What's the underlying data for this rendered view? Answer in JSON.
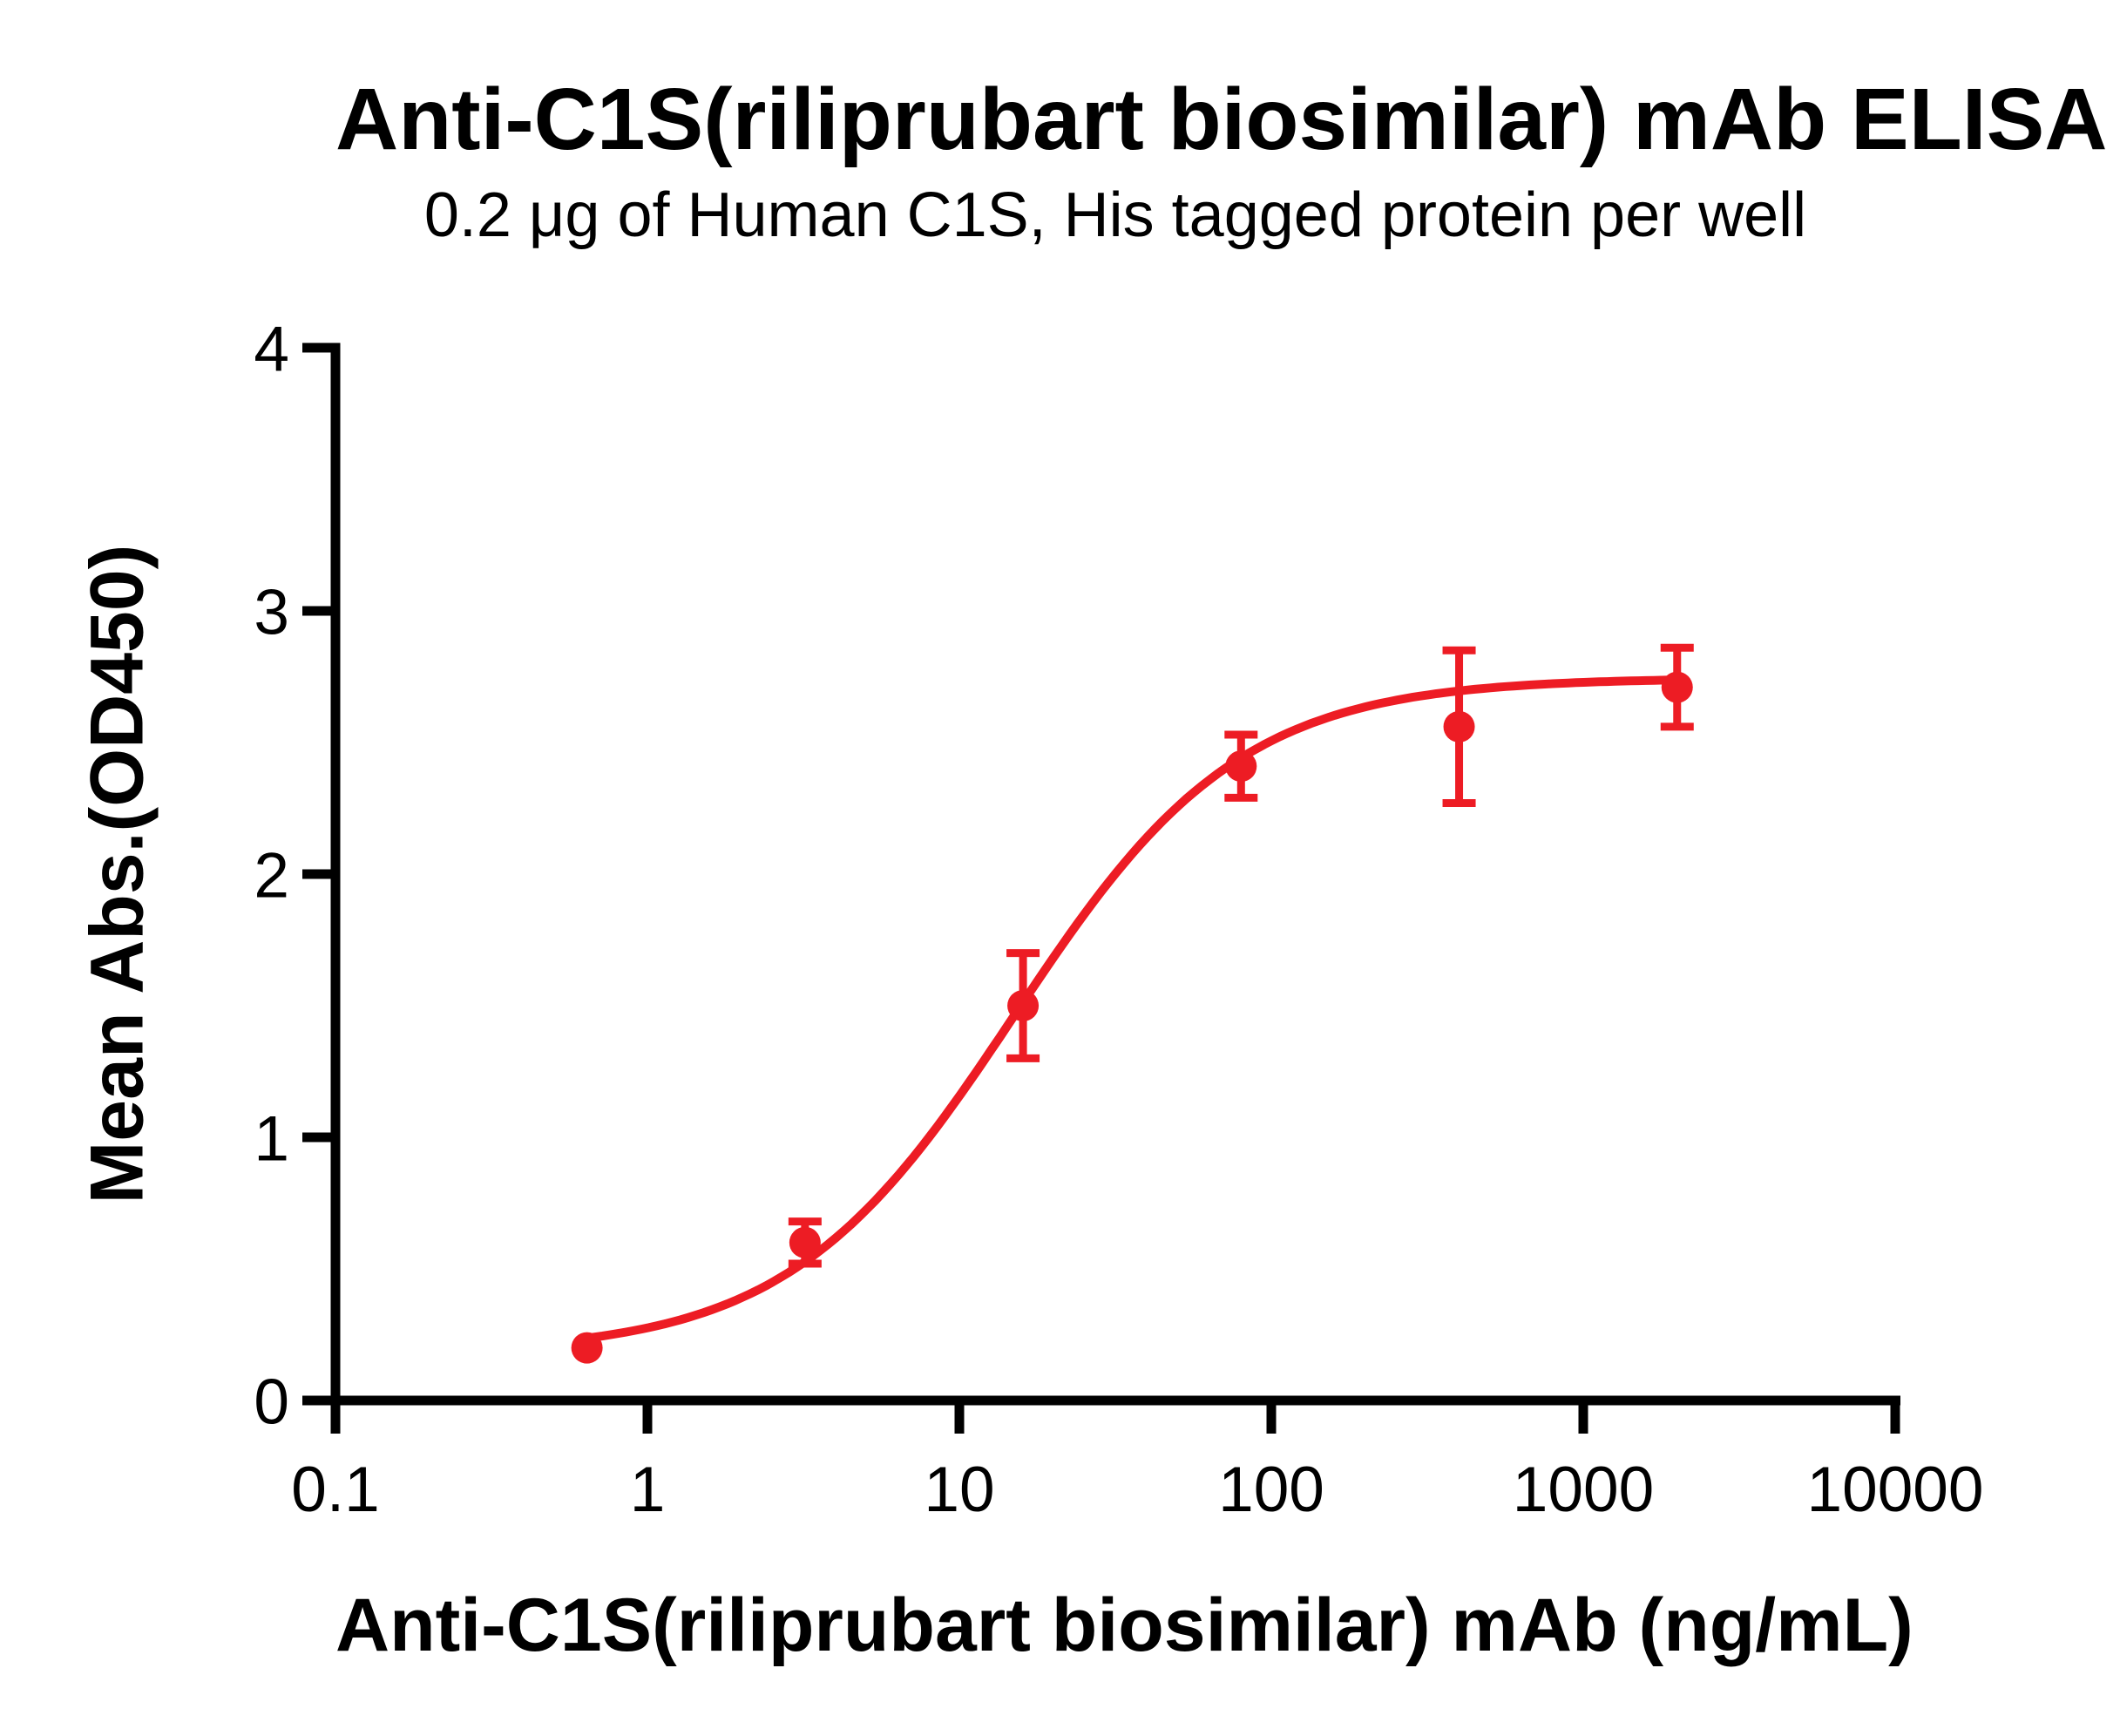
{
  "chart_data": {
    "type": "scatter",
    "title": "Anti-C1S(riliprubart biosimilar) mAb ELISA",
    "subtitle": "0.2 μg of Human C1S, His tagged protein per well",
    "xlabel": "Anti-C1S(riliprubart biosimilar) mAb (ng/mL)",
    "ylabel": "Mean Abs.(OD450)",
    "x_scale": "log10",
    "xlim": [
      0.1,
      10000
    ],
    "ylim": [
      0,
      4
    ],
    "x_ticks": [
      0.1,
      1,
      10,
      100,
      1000,
      10000
    ],
    "x_tick_labels": [
      "0.1",
      "1",
      "10",
      "100",
      "1000",
      "10000"
    ],
    "y_ticks": [
      0,
      1,
      2,
      3,
      4
    ],
    "y_tick_labels": [
      "0",
      "1",
      "2",
      "3",
      "4"
    ],
    "grid": false,
    "legend": "none",
    "axis_color": "#000000",
    "background": "#FFFFFF",
    "series": [
      {
        "name": "Anti-C1S(riliprubart biosimilar) mAb",
        "color": "#ED1C24",
        "marker": "circle",
        "points": [
          {
            "x": 0.64,
            "y": 0.2,
            "err": 0
          },
          {
            "x": 3.2,
            "y": 0.6,
            "err": 0.08
          },
          {
            "x": 16,
            "y": 1.5,
            "err": 0.2
          },
          {
            "x": 80,
            "y": 2.41,
            "err": 0.12
          },
          {
            "x": 400,
            "y": 2.56,
            "err": 0.29
          },
          {
            "x": 2000,
            "y": 2.71,
            "err": 0.15
          }
        ],
        "fit": {
          "model": "4PL",
          "bottom": 0.18,
          "top": 2.745,
          "ec50": 15,
          "hill": 1.2,
          "x_range": [
            0.64,
            2000
          ]
        }
      }
    ]
  }
}
